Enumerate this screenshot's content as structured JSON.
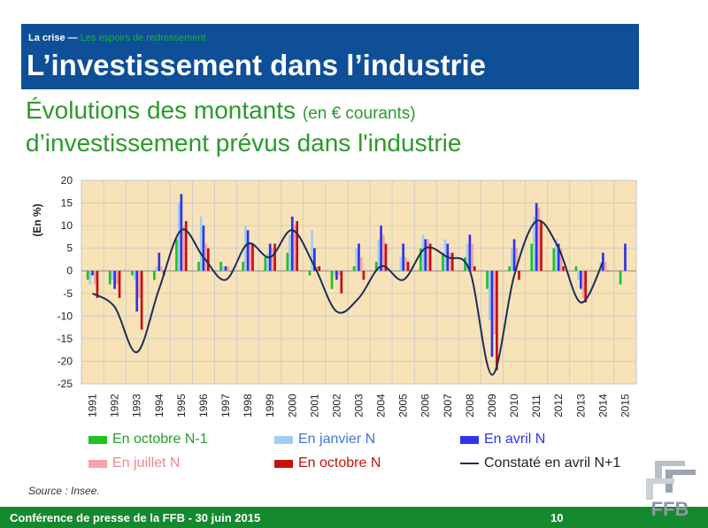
{
  "header": {
    "kicker_prefix": "La crise — ",
    "kicker_highlight": "Les espoirs de redressement",
    "title": "L’investissement dans l’industrie"
  },
  "subtitle": {
    "line1_main": "Évolutions des montants ",
    "line1_small": "(en € courants)",
    "line2": "d’investissement prévus dans l'industrie"
  },
  "source": "Source : Insee.",
  "footer": {
    "text": "Conférence de presse de la FFB - 30 juin 2015",
    "page": "10",
    "logo_text": "FFB"
  },
  "colors": {
    "green": "#21c121",
    "lightblue": "#9fcdf6",
    "blue": "#2f35e6",
    "pink": "#f4a3a8",
    "red": "#c80f0f",
    "line": "#1a2d5a",
    "plot_bg": "#f8e3b8"
  },
  "chart_data": {
    "type": "bar",
    "ylabel": "(En %)",
    "ylim": [
      -25,
      20
    ],
    "yticks": [
      20,
      15,
      10,
      5,
      0,
      -5,
      -10,
      -15,
      -20,
      -25
    ],
    "grid": true,
    "legend_position": "bottom",
    "categories": [
      "1991",
      "1992",
      "1993",
      "1994",
      "1995",
      "1996",
      "1997",
      "1998",
      "1999",
      "2000",
      "2001",
      "2002",
      "2003",
      "2004",
      "2005",
      "2006",
      "2007",
      "2008",
      "2009",
      "2010",
      "2011",
      "2012",
      "2013",
      "2014",
      "2015"
    ],
    "series": [
      {
        "name": "En octobre N-1",
        "color": "#21c121",
        "values": [
          -2,
          -3,
          -1,
          -2,
          7,
          2,
          2,
          2,
          3,
          4,
          -1,
          -4,
          1,
          2,
          0,
          5,
          4,
          3,
          -4,
          1,
          6,
          5,
          1,
          0,
          -3
        ]
      },
      {
        "name": "En janvier N",
        "color": "#9fcdf6",
        "values": [
          -3,
          -2,
          -2,
          1,
          15,
          12,
          1,
          10,
          4,
          8,
          9,
          -1,
          5,
          7,
          3,
          8,
          7,
          6,
          -11,
          5,
          12,
          7,
          -2,
          2,
          null
        ]
      },
      {
        "name": "En avril N",
        "color": "#2f35e6",
        "values": [
          -1,
          -4,
          -9,
          4,
          17,
          10,
          1,
          9,
          6,
          12,
          5,
          -2,
          6,
          10,
          6,
          7,
          6,
          8,
          -19,
          7,
          15,
          6,
          -4,
          4,
          6
        ]
      },
      {
        "name": "En juillet N",
        "color": "#f4a3a8",
        "values": [
          -3,
          -3,
          -6,
          1,
          10,
          6,
          1,
          6,
          5,
          10,
          1,
          -1,
          3,
          8,
          3,
          7,
          4,
          6,
          -14,
          5,
          14,
          5,
          -6,
          2,
          null
        ]
      },
      {
        "name": "En octobre N",
        "color": "#c80f0f",
        "values": [
          -6,
          -6,
          -13,
          -1,
          11,
          5,
          0,
          6,
          6,
          11,
          1,
          -5,
          -2,
          6,
          2,
          6,
          4,
          1,
          -22,
          -2,
          11,
          1,
          -7,
          0,
          null
        ]
      }
    ],
    "line_series": {
      "name": "Constaté en avril N+1",
      "color": "#1a2d5a",
      "values": [
        -5,
        -8,
        -18,
        -4,
        9,
        3,
        -2,
        6,
        3,
        9,
        1,
        -9,
        -6,
        1,
        -2,
        5,
        3,
        0,
        -23,
        -1,
        11,
        5,
        -7,
        2,
        null
      ]
    }
  }
}
